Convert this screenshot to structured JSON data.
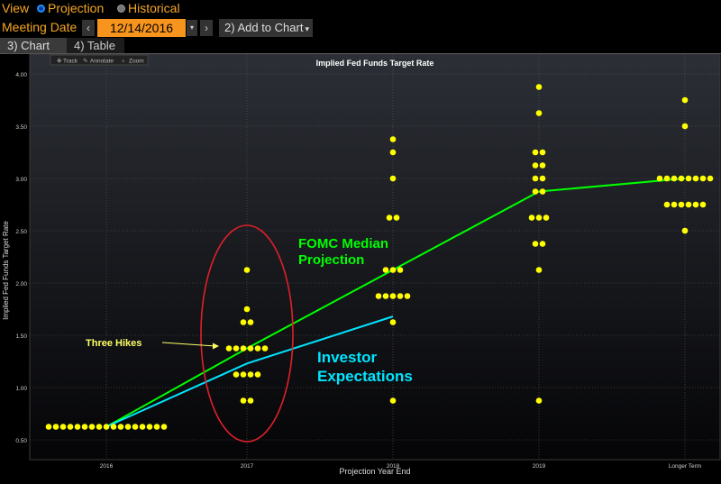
{
  "toolbar": {
    "view_label": "View",
    "opt_projection": "Projection",
    "opt_historical": "Historical",
    "meeting_date_label": "Meeting Date",
    "nav_prev": "‹",
    "nav_next": "›",
    "meeting_date_value": "12/14/2016",
    "dropdown_arrow": "▾",
    "add_to_chart": "2) Add to Chart",
    "add_arrow": "▾"
  },
  "tabs": [
    {
      "label": "3) Chart"
    },
    {
      "label": "4) Table"
    }
  ],
  "chart_tools": {
    "track": "Track",
    "annotate": "Annotate",
    "zoom": "Zoom"
  },
  "colors": {
    "dots": "#ffff00",
    "fomc_line": "#00ff00",
    "investor_line": "#00e5ff",
    "circle": "#e0202a",
    "annotation_three_hikes": "#ffff66"
  },
  "chart_data": {
    "type": "scatter",
    "title": "Implied Fed Funds Target Rate",
    "xlabel": "Projection Year End",
    "ylabel": "Implied Fed Funds Target Rate",
    "categories": [
      "2016",
      "2017",
      "2018",
      "2019",
      "Longer Term"
    ],
    "ylim": [
      0.4,
      4.1
    ],
    "yticks": [
      "0.50",
      "1.00",
      "1.50",
      "2.00",
      "2.50",
      "3.00",
      "3.50",
      "4.00"
    ],
    "dots": [
      {
        "category": "2016",
        "values": [
          0.625,
          0.625,
          0.625,
          0.625,
          0.625,
          0.625,
          0.625,
          0.625,
          0.625,
          0.625,
          0.625,
          0.625,
          0.625,
          0.625,
          0.625,
          0.625,
          0.625
        ]
      },
      {
        "category": "2017",
        "values": [
          2.125,
          1.75,
          1.625,
          1.625,
          1.375,
          1.375,
          1.375,
          1.375,
          1.375,
          1.375,
          1.125,
          1.125,
          1.125,
          1.125,
          0.875,
          0.875
        ]
      },
      {
        "category": "2018",
        "values": [
          3.375,
          3.25,
          3.0,
          2.625,
          2.625,
          2.125,
          2.125,
          2.125,
          1.875,
          1.875,
          1.875,
          1.875,
          1.875,
          1.625,
          0.875
        ]
      },
      {
        "category": "2019",
        "values": [
          3.875,
          3.625,
          3.25,
          3.25,
          3.125,
          3.125,
          3.0,
          3.0,
          2.875,
          2.875,
          2.625,
          2.625,
          2.625,
          2.375,
          2.375,
          2.125,
          0.875
        ]
      },
      {
        "category": "Longer Term",
        "values": [
          3.75,
          3.5,
          3.0,
          3.0,
          3.0,
          3.0,
          3.0,
          3.0,
          3.0,
          3.0,
          2.75,
          2.75,
          2.75,
          2.75,
          2.75,
          2.75,
          2.5
        ]
      }
    ],
    "series": [
      {
        "name": "FOMC Median Projection",
        "x": [
          0,
          1,
          2,
          3,
          4
        ],
        "values": [
          0.625,
          1.375,
          2.125,
          2.875,
          3.0
        ]
      },
      {
        "name": "Investor Expectations",
        "x": [
          0,
          1,
          2
        ],
        "values": [
          0.625,
          1.23,
          1.68
        ]
      }
    ],
    "annotations": {
      "fomc_label_line1": "FOMC Median",
      "fomc_label_line2": "Projection",
      "investor_label_line1": "Investor",
      "investor_label_line2": "Expectations",
      "three_hikes": "Three Hikes"
    },
    "grid": true
  }
}
